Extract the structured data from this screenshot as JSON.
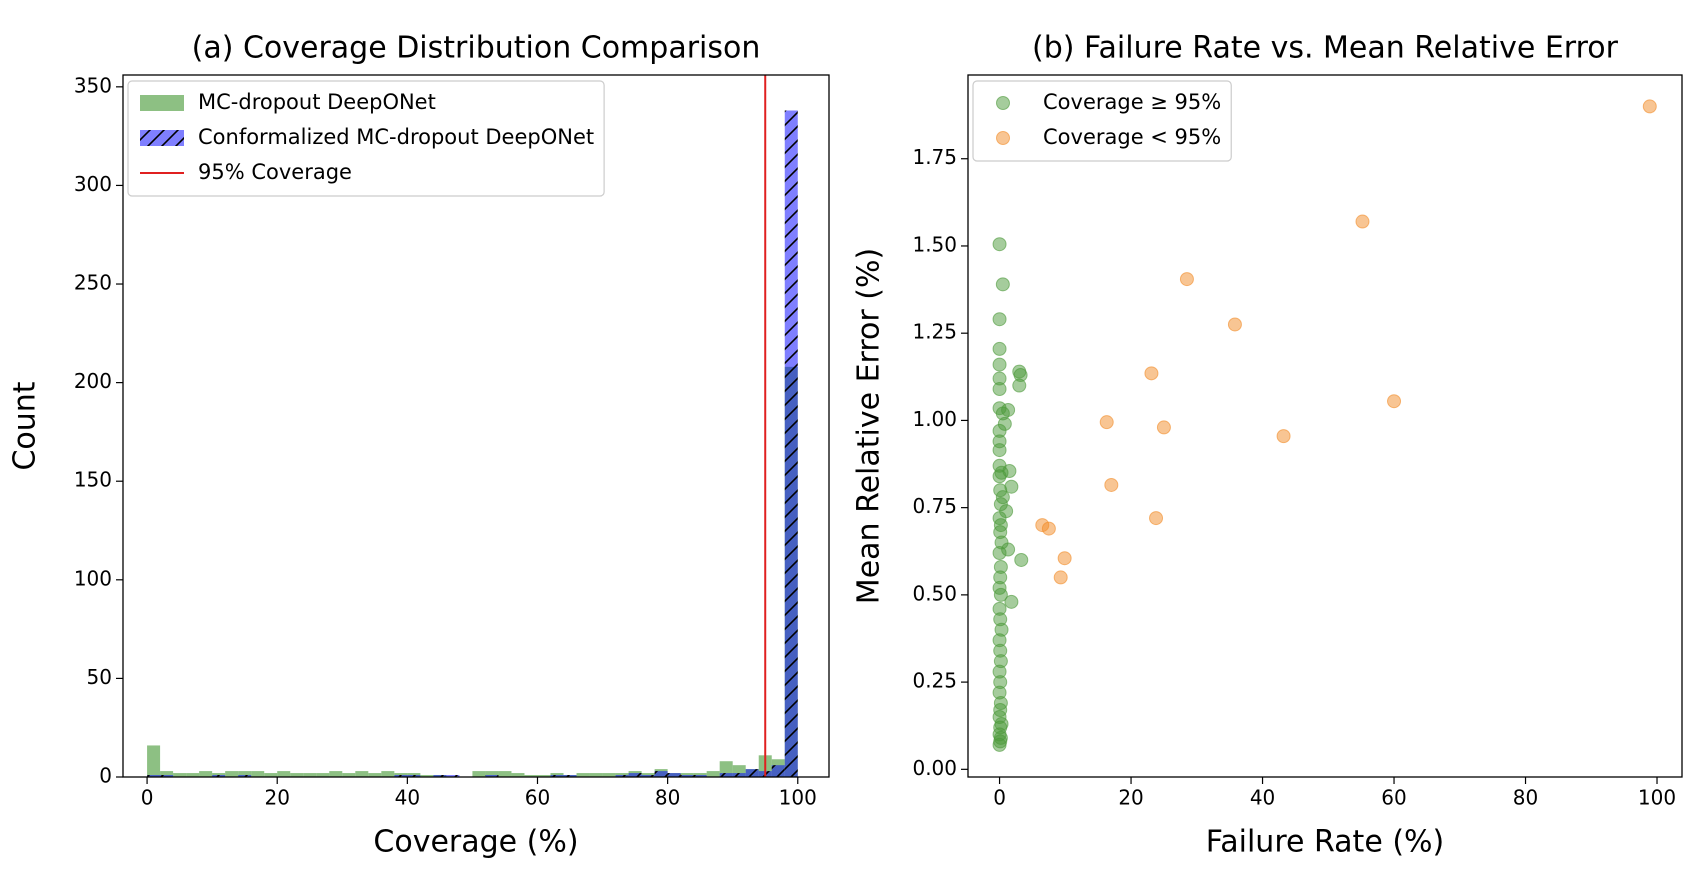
{
  "chart_data": [
    {
      "type": "histogram",
      "title": "(a) Coverage Distribution Comparison",
      "x_label": "Coverage (%)",
      "y_label": "Count",
      "bins": [
        0,
        2,
        4,
        6,
        8,
        10,
        12,
        14,
        16,
        18,
        20,
        22,
        24,
        26,
        28,
        30,
        32,
        34,
        36,
        38,
        40,
        42,
        44,
        46,
        48,
        50,
        52,
        54,
        56,
        58,
        60,
        62,
        64,
        66,
        68,
        70,
        72,
        74,
        76,
        78,
        80,
        82,
        84,
        86,
        88,
        90,
        92,
        94,
        96,
        98,
        100
      ],
      "series": [
        {
          "name": "MC-dropout DeepONet",
          "color": "#5da54f",
          "values": [
            16,
            3,
            2,
            2,
            3,
            2,
            3,
            3,
            3,
            2,
            3,
            2,
            2,
            2,
            3,
            2,
            3,
            2,
            3,
            2,
            2,
            1,
            1,
            0,
            0,
            3,
            3,
            3,
            2,
            1,
            1,
            2,
            1,
            2,
            2,
            2,
            2,
            3,
            2,
            4,
            2,
            2,
            2,
            3,
            8,
            6,
            4,
            11,
            9,
            208
          ]
        },
        {
          "name": "Conformalized MC-dropout DeepONet",
          "color": "#0000ff",
          "hatch": "/",
          "values": [
            1,
            1,
            0,
            0,
            0,
            1,
            0,
            1,
            0,
            0,
            0,
            0,
            0,
            0,
            0,
            0,
            0,
            0,
            0,
            1,
            1,
            0,
            1,
            1,
            0,
            0,
            1,
            0,
            0,
            0,
            0,
            1,
            1,
            0,
            0,
            0,
            1,
            2,
            1,
            3,
            2,
            1,
            1,
            0,
            2,
            2,
            4,
            3,
            6,
            338
          ]
        }
      ],
      "vline": {
        "x": 95,
        "name": "95% Coverage",
        "color": "#e02020"
      },
      "xlim": [
        -3.7,
        104.8
      ],
      "ylim": [
        0,
        356
      ],
      "xticks": [
        0,
        20,
        40,
        60,
        80,
        100
      ],
      "yticks": [
        0,
        50,
        100,
        150,
        200,
        250,
        300,
        350
      ],
      "legend": "upper left"
    },
    {
      "type": "scatter",
      "title": "(b) Failure Rate vs. Mean Relative Error",
      "x_label": "Failure Rate (%)",
      "y_label": "Mean Relative Error (%)",
      "series": [
        {
          "name": "Coverage ≥ 95%",
          "color": "#4c9a3a",
          "x": [
            0,
            0.5,
            0,
            0,
            0,
            0,
            3,
            3.2,
            3,
            0,
            0,
            1.3,
            0.5,
            0.8,
            0,
            0,
            0,
            1.5,
            1.8,
            0,
            0.3,
            0.5,
            1,
            0.2,
            1.3,
            3.3,
            1.8,
            0,
            0.1,
            0.2,
            0,
            0.1,
            0.3,
            0,
            0.2,
            0.1,
            0,
            0.2,
            0,
            0.1,
            0.3,
            0,
            0.1,
            0.2,
            0,
            0.1,
            0,
            0.2,
            0.1,
            0,
            0.3,
            0.1,
            0,
            0.2,
            0.1,
            0
          ],
          "y": [
            1.505,
            1.39,
            1.29,
            1.205,
            1.16,
            1.12,
            1.14,
            1.13,
            1.1,
            1.09,
            1.035,
            1.03,
            1.02,
            0.99,
            0.97,
            0.94,
            0.915,
            0.855,
            0.81,
            0.87,
            0.85,
            0.78,
            0.74,
            0.7,
            0.63,
            0.6,
            0.48,
            0.84,
            0.8,
            0.76,
            0.72,
            0.68,
            0.65,
            0.62,
            0.58,
            0.55,
            0.52,
            0.5,
            0.46,
            0.43,
            0.4,
            0.37,
            0.34,
            0.31,
            0.28,
            0.25,
            0.22,
            0.19,
            0.17,
            0.15,
            0.13,
            0.12,
            0.1,
            0.09,
            0.08,
            0.07
          ]
        },
        {
          "name": "Coverage < 95%",
          "color": "#f28c28",
          "x": [
            98.9,
            55.2,
            28.5,
            35.8,
            23.1,
            60,
            16.3,
            25,
            43.2,
            17,
            6.5,
            7.5,
            23.8,
            9.9,
            9.3
          ],
          "y": [
            1.9,
            1.57,
            1.405,
            1.275,
            1.135,
            1.055,
            0.995,
            0.98,
            0.955,
            0.815,
            0.7,
            0.69,
            0.72,
            0.605,
            0.55
          ]
        }
      ],
      "xlim": [
        -4.8,
        103.8
      ],
      "ylim": [
        -0.022,
        1.99
      ],
      "xticks": [
        0,
        20,
        40,
        60,
        80,
        100
      ],
      "yticks": [
        {
          "value": 0,
          "label": "0.00"
        },
        {
          "value": 0.25,
          "label": "0.25"
        },
        {
          "value": 0.5,
          "label": "0.50"
        },
        {
          "value": 0.75,
          "label": "0.75"
        },
        {
          "value": 1,
          "label": "1.00"
        },
        {
          "value": 1.25,
          "label": "1.25"
        },
        {
          "value": 1.5,
          "label": "1.50"
        },
        {
          "value": 1.75,
          "label": "1.75"
        }
      ],
      "legend": "upper left"
    }
  ]
}
